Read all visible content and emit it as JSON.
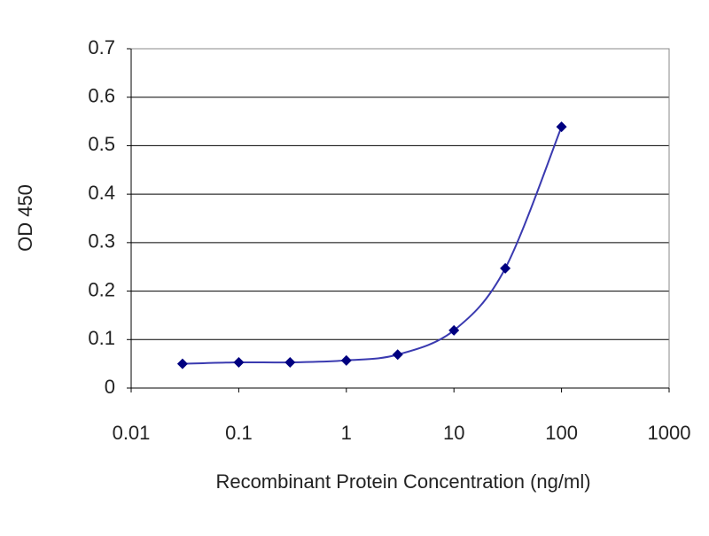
{
  "chart_data": {
    "type": "line",
    "x_label": "Recombinant Protein Concentration (ng/ml)",
    "y_label": "OD 450",
    "x": [
      0.03,
      0.1,
      0.3,
      1,
      3,
      10,
      30,
      100
    ],
    "series": [
      {
        "color": "#000080",
        "line_color": "#3a3ab0",
        "values": [
          0.05,
          0.053,
          0.053,
          0.057,
          0.069,
          0.119,
          0.247,
          0.539
        ]
      }
    ],
    "xscale": "log",
    "xlim": [
      0.01,
      1000
    ],
    "xticks": [
      0.01,
      0.1,
      1,
      10,
      100,
      1000
    ],
    "ylim": [
      0,
      0.7
    ],
    "yticks": [
      0,
      0.1,
      0.2,
      0.3,
      0.4,
      0.5,
      0.6,
      0.7
    ],
    "grid": true
  }
}
